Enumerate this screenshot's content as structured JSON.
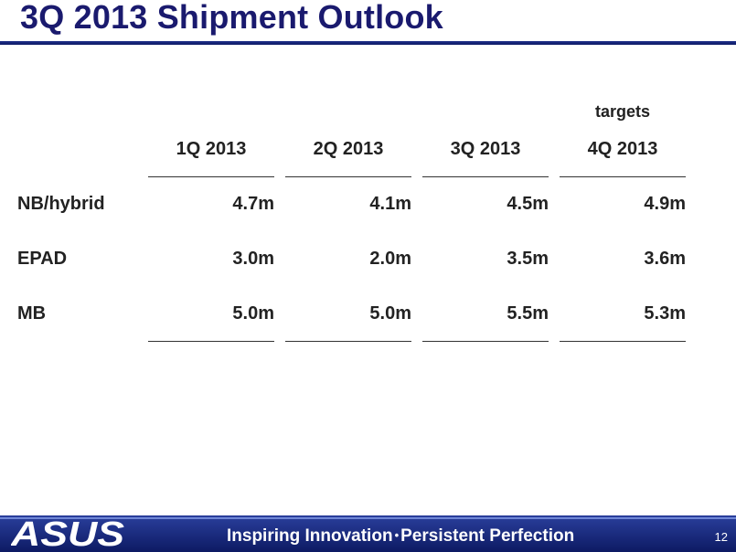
{
  "slide": {
    "title": "3Q 2013 Shipment Outlook",
    "targets_label": "targets",
    "page_number": "12"
  },
  "table": {
    "columns": [
      "1Q 2013",
      "2Q 2013",
      "3Q 2013",
      "4Q 2013"
    ],
    "rows": [
      {
        "label": "NB/hybrid",
        "values": [
          "4.7m",
          "4.1m",
          "4.5m",
          "4.9m"
        ]
      },
      {
        "label": "EPAD",
        "values": [
          "3.0m",
          "2.0m",
          "3.5m",
          "3.6m"
        ]
      },
      {
        "label": "MB",
        "values": [
          "5.0m",
          "5.0m",
          "5.5m",
          "5.3m"
        ]
      }
    ]
  },
  "footer": {
    "logo_text": "ASUS",
    "tagline_left": "Inspiring Innovation",
    "separator": "•",
    "tagline_right": "Persistent Perfection",
    "colors": {
      "bar": "#1a2c88",
      "text": "#ffffff"
    }
  },
  "colors": {
    "title": "#1a1a6e",
    "title_rule": "#1d2f8a",
    "body_text": "#222222"
  }
}
